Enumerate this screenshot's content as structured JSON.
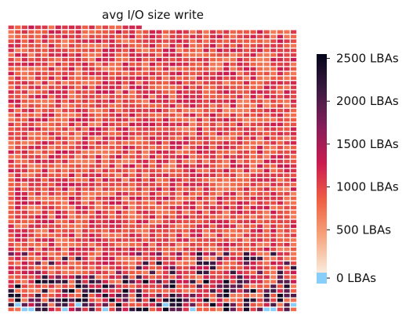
{
  "chart_data": {
    "type": "heatmap",
    "title": "avg I/O size write",
    "xlabel": "",
    "ylabel": "",
    "rows": 62,
    "cols": 43,
    "full_rows_from_row": 1,
    "top_row_filled_cols": 20,
    "colorbar": {
      "label": "",
      "vmin": 0,
      "vmax": 2550,
      "ticks": [
        0,
        500,
        1000,
        1500,
        2000,
        2500
      ],
      "tick_labels": [
        "0 LBAs",
        "500 LBAs",
        "1000 LBAs",
        "1500 LBAs",
        "2000 LBAs",
        "2500 LBAs"
      ],
      "under_color": "#87cefa",
      "colormap": "rocket_r",
      "colormap_stops": [
        "#faebdd",
        "#f6a47c",
        "#f06043",
        "#cb1b4f",
        "#841e5a",
        "#3e1a42",
        "#03051a"
      ]
    },
    "value_profile": {
      "typical_range": [
        600,
        1300
      ],
      "dark_cells_near_bottom_rows": "1800-2550",
      "light_blue_cells": "below 0 (bottom rows)"
    }
  }
}
